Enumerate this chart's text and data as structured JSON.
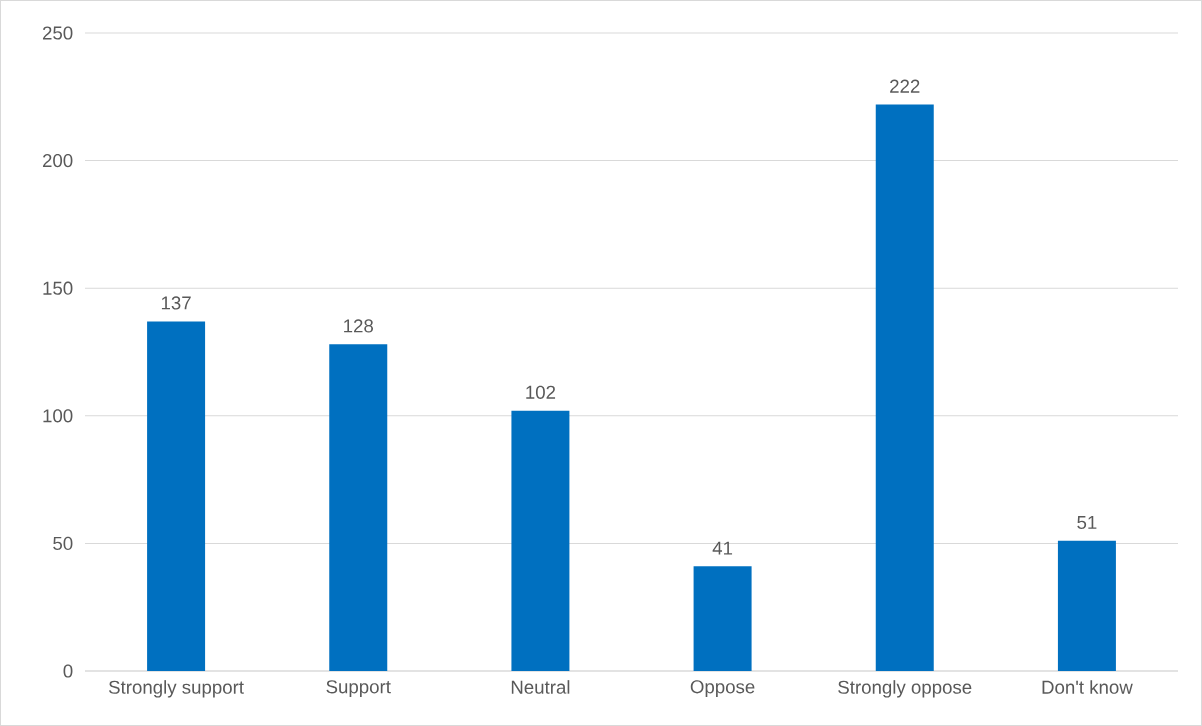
{
  "chart_data": {
    "type": "bar",
    "categories": [
      "Strongly support",
      "Support",
      "Neutral",
      "Oppose",
      "Strongly oppose",
      "Don't know"
    ],
    "values": [
      137,
      128,
      102,
      41,
      222,
      51
    ],
    "color": "#0070c0",
    "ylim": [
      0,
      250
    ],
    "yticks": [
      0,
      50,
      100,
      150,
      200,
      250
    ],
    "grid": "y",
    "data_labels": true
  }
}
